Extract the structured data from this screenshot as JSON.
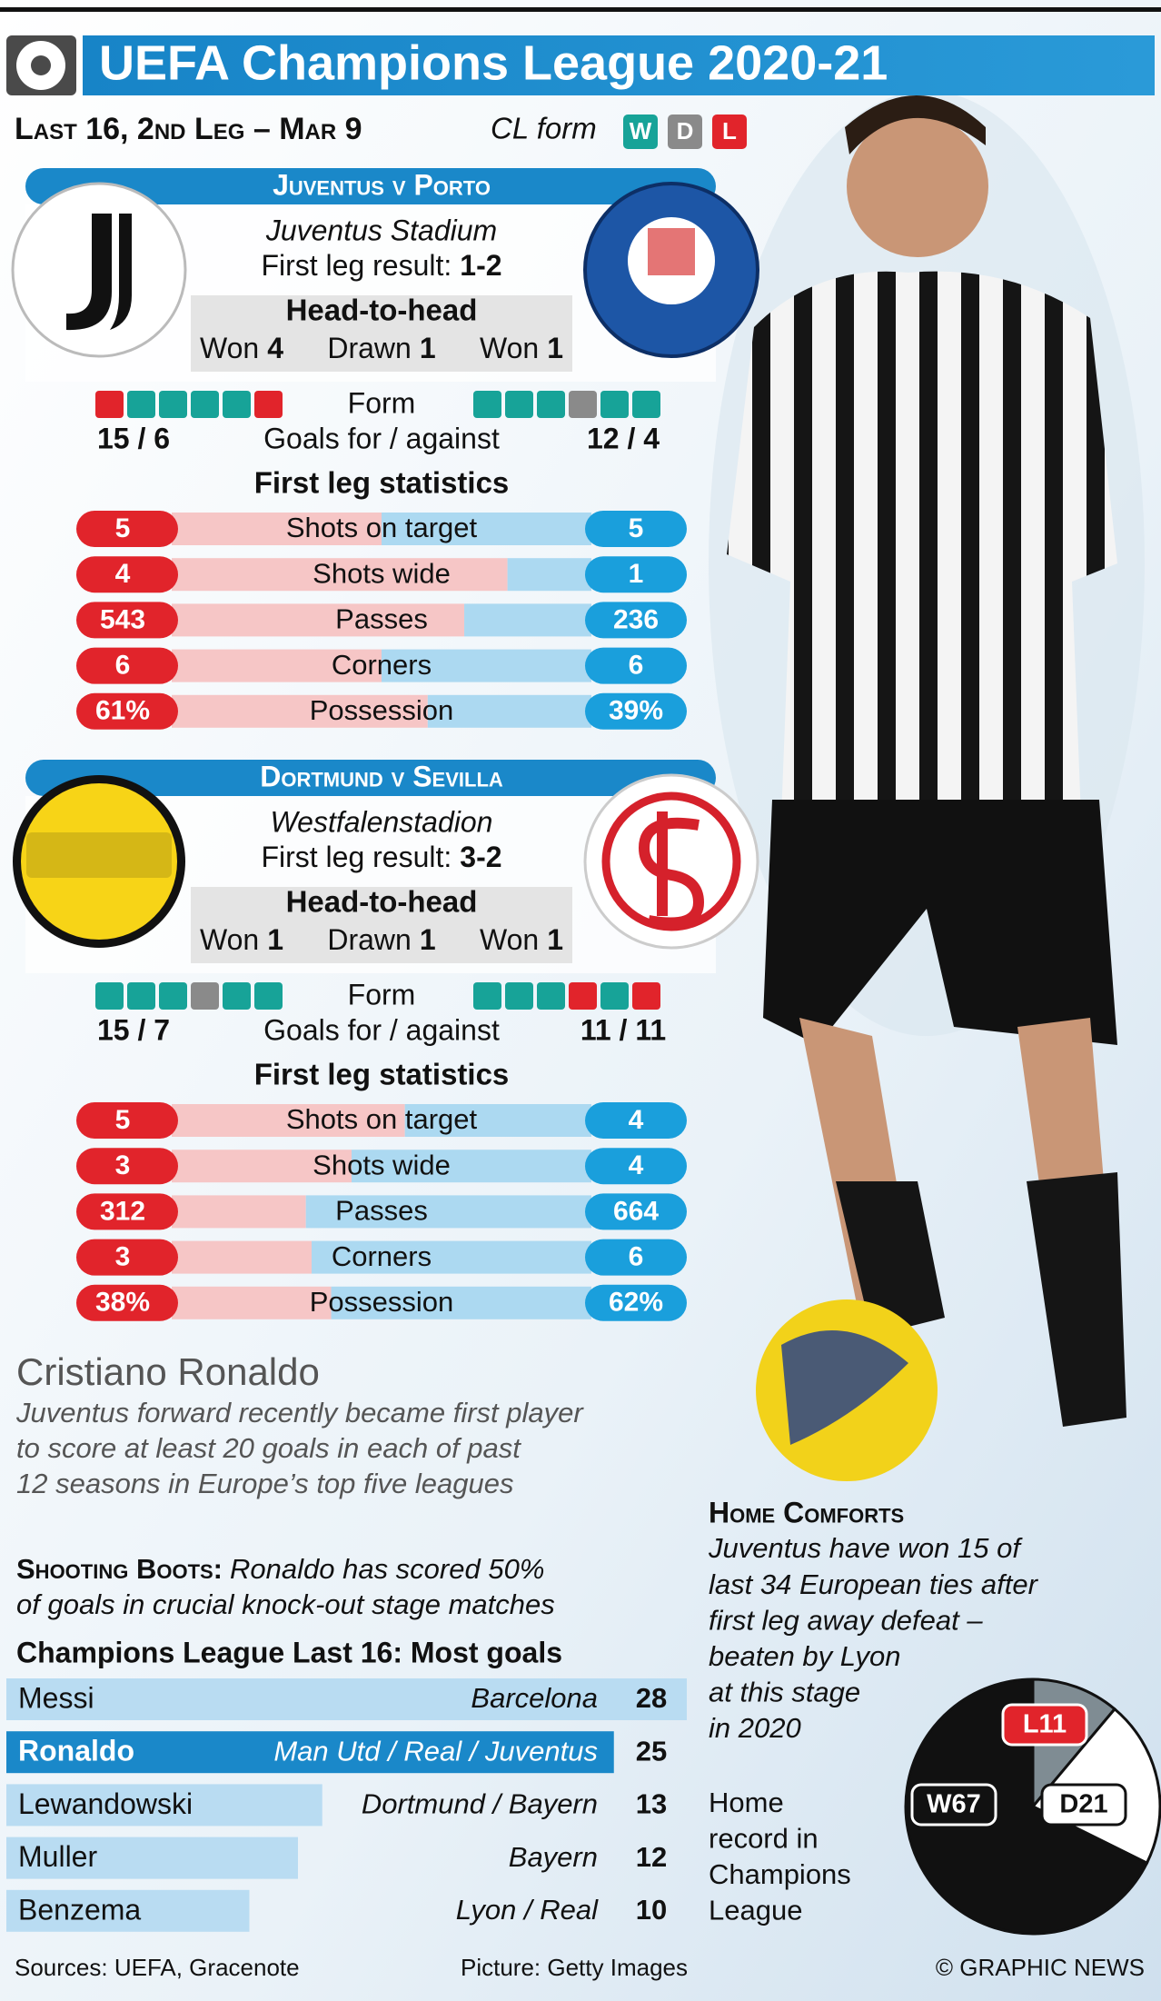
{
  "header": {
    "title": "UEFA Champions League 2020-21",
    "round": "Last 16, 2nd Leg – Mar 9",
    "form_legend_label": "CL form",
    "form_legend": [
      "W",
      "D",
      "L"
    ]
  },
  "matches": [
    {
      "title": "Juventus v Porto",
      "venue": "Juventus Stadium",
      "first_leg_label": "First leg result:",
      "first_leg_score": "1-2",
      "h2h_title": "Head-to-head",
      "h2h": [
        {
          "label": "Won",
          "value": 4
        },
        {
          "label": "Drawn",
          "value": 1
        },
        {
          "label": "Won",
          "value": 1
        }
      ],
      "form_label": "Form",
      "home_form": [
        "L",
        "W",
        "W",
        "W",
        "W",
        "L"
      ],
      "away_form": [
        "W",
        "W",
        "W",
        "D",
        "W",
        "W"
      ],
      "goals_label": "Goals for / against",
      "home_goals": "15 / 6",
      "away_goals": "12 / 4",
      "stats_title": "First leg statistics",
      "stats": [
        {
          "label": "Shots on target",
          "home": 5,
          "away": 5
        },
        {
          "label": "Shots wide",
          "home": 4,
          "away": 1
        },
        {
          "label": "Passes",
          "home": 543,
          "away": 236
        },
        {
          "label": "Corners",
          "home": 6,
          "away": 6
        },
        {
          "label": "Possession",
          "home": 61,
          "away": 39,
          "home_label": "61%",
          "away_label": "39%"
        }
      ]
    },
    {
      "title": "Dortmund v Sevilla",
      "venue": "Westfalenstadion",
      "first_leg_label": "First leg result:",
      "first_leg_score": "3-2",
      "h2h_title": "Head-to-head",
      "h2h": [
        {
          "label": "Won",
          "value": 1
        },
        {
          "label": "Drawn",
          "value": 1
        },
        {
          "label": "Won",
          "value": 1
        }
      ],
      "form_label": "Form",
      "home_form": [
        "W",
        "W",
        "W",
        "D",
        "W",
        "W"
      ],
      "away_form": [
        "W",
        "W",
        "W",
        "L",
        "W",
        "L"
      ],
      "goals_label": "Goals for / against",
      "home_goals": "15 / 7",
      "away_goals": "11 / 11",
      "stats_title": "First leg statistics",
      "stats": [
        {
          "label": "Shots on target",
          "home": 5,
          "away": 4
        },
        {
          "label": "Shots wide",
          "home": 3,
          "away": 4
        },
        {
          "label": "Passes",
          "home": 312,
          "away": 664
        },
        {
          "label": "Corners",
          "home": 3,
          "away": 6
        },
        {
          "label": "Possession",
          "home": 38,
          "away": 62,
          "home_label": "38%",
          "away_label": "62%"
        }
      ]
    }
  ],
  "ronaldo": {
    "name": "Cristiano Ronaldo",
    "lines": [
      "Juventus forward recently became first player",
      "to score at least 20 goals in each of past",
      "12 seasons in Europe’s top five leagues"
    ]
  },
  "shooting_boots": {
    "lead": "Shooting Boots:",
    "lines": [
      "Ronaldo has scored 50%",
      "of goals in crucial knock-out stage matches"
    ]
  },
  "scorers": {
    "title": "Champions League Last 16: Most goals",
    "rows": [
      {
        "name": "Messi",
        "clubs": "Barcelona",
        "goals": 28
      },
      {
        "name": "Ronaldo",
        "clubs": "Man Utd / Real / Juventus",
        "goals": 25
      },
      {
        "name": "Lewandowski",
        "clubs": "Dortmund / Bayern",
        "goals": 13
      },
      {
        "name": "Muller",
        "clubs": "Bayern",
        "goals": 12
      },
      {
        "name": "Benzema",
        "clubs": "Lyon / Real",
        "goals": 10
      }
    ]
  },
  "home_comforts": {
    "title": "Home Comforts",
    "lines": [
      "Juventus have won 15 of",
      "last 34 European ties after",
      "first leg away defeat –",
      "beaten by Lyon",
      "at this stage",
      "in 2020"
    ]
  },
  "home_record": {
    "label_lines": [
      "Home",
      "record in",
      "Champions",
      "League"
    ],
    "segments": [
      {
        "label": "L11",
        "value": 11
      },
      {
        "label": "D21",
        "value": 21
      },
      {
        "label": "W67",
        "value": 67
      }
    ]
  },
  "footer": {
    "sources": "Sources: UEFA, Gracenote",
    "picture": "Picture: Getty Images",
    "credit": "© GRAPHIC NEWS"
  }
}
